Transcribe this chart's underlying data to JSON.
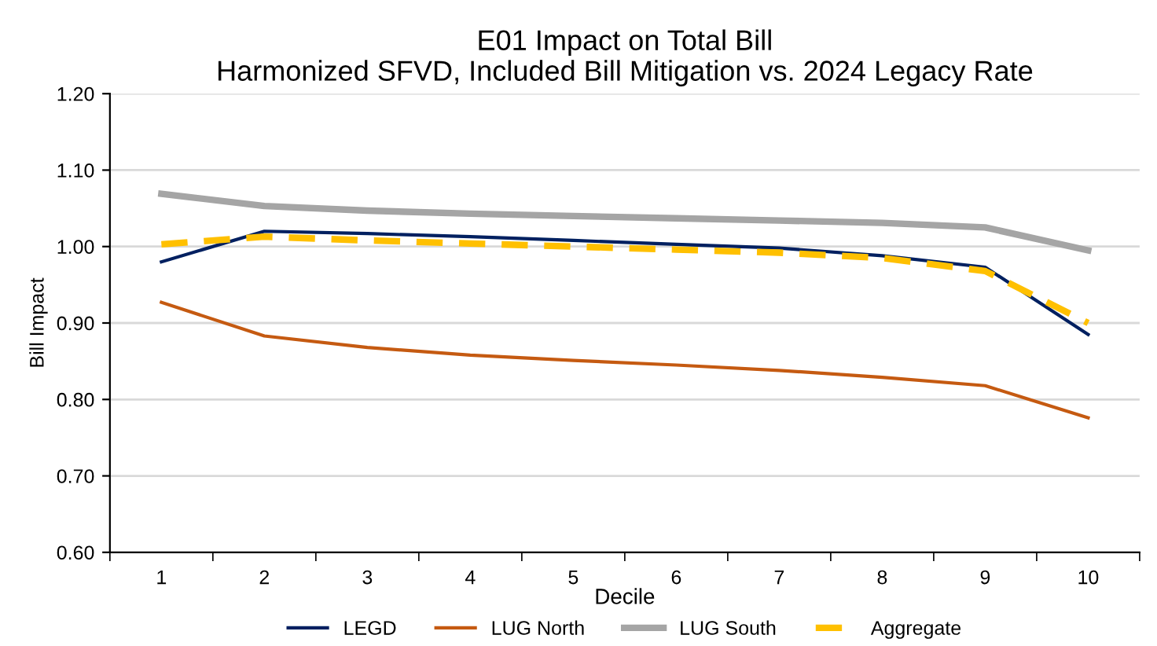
{
  "chart_data": {
    "type": "line",
    "title": "E01 Impact on Total Bill\nHarmonized SFVD, Included Bill Mitigation vs. 2024 Legacy Rate",
    "xlabel": "Decile",
    "ylabel": "Bill Impact",
    "categories": [
      "1",
      "2",
      "3",
      "4",
      "5",
      "6",
      "7",
      "8",
      "9",
      "10"
    ],
    "series": [
      {
        "name": "LEGD",
        "color": "#002060",
        "values": [
          0.98,
          1.02,
          1.017,
          1.013,
          1.008,
          1.003,
          0.998,
          0.988,
          0.973,
          0.885
        ]
      },
      {
        "name": "LUG North",
        "color": "#c55a11",
        "values": [
          0.927,
          0.883,
          0.868,
          0.858,
          0.851,
          0.845,
          0.838,
          0.829,
          0.818,
          0.776
        ]
      },
      {
        "name": "LUG South",
        "color": "#a5a5a5",
        "values": [
          1.069,
          1.053,
          1.047,
          1.043,
          1.04,
          1.037,
          1.034,
          1.031,
          1.025,
          0.995
        ]
      },
      {
        "name": "Aggregate",
        "color": "#ffc000",
        "line_style": "dashed",
        "values": [
          1.003,
          1.013,
          1.008,
          1.004,
          1.0,
          0.996,
          0.992,
          0.985,
          0.968,
          0.9
        ]
      }
    ],
    "ylim": [
      0.6,
      1.2
    ],
    "yticks": [
      {
        "value": 0.6,
        "label": "0.60"
      },
      {
        "value": 0.7,
        "label": "0.70"
      },
      {
        "value": 0.8,
        "label": "0.80"
      },
      {
        "value": 0.9,
        "label": "0.90"
      },
      {
        "value": 1.0,
        "label": "1.00"
      },
      {
        "value": 1.1,
        "label": "1.10"
      },
      {
        "value": 1.2,
        "label": "1.20"
      }
    ],
    "grid": "y",
    "legend": "bottom",
    "marker": "none"
  }
}
